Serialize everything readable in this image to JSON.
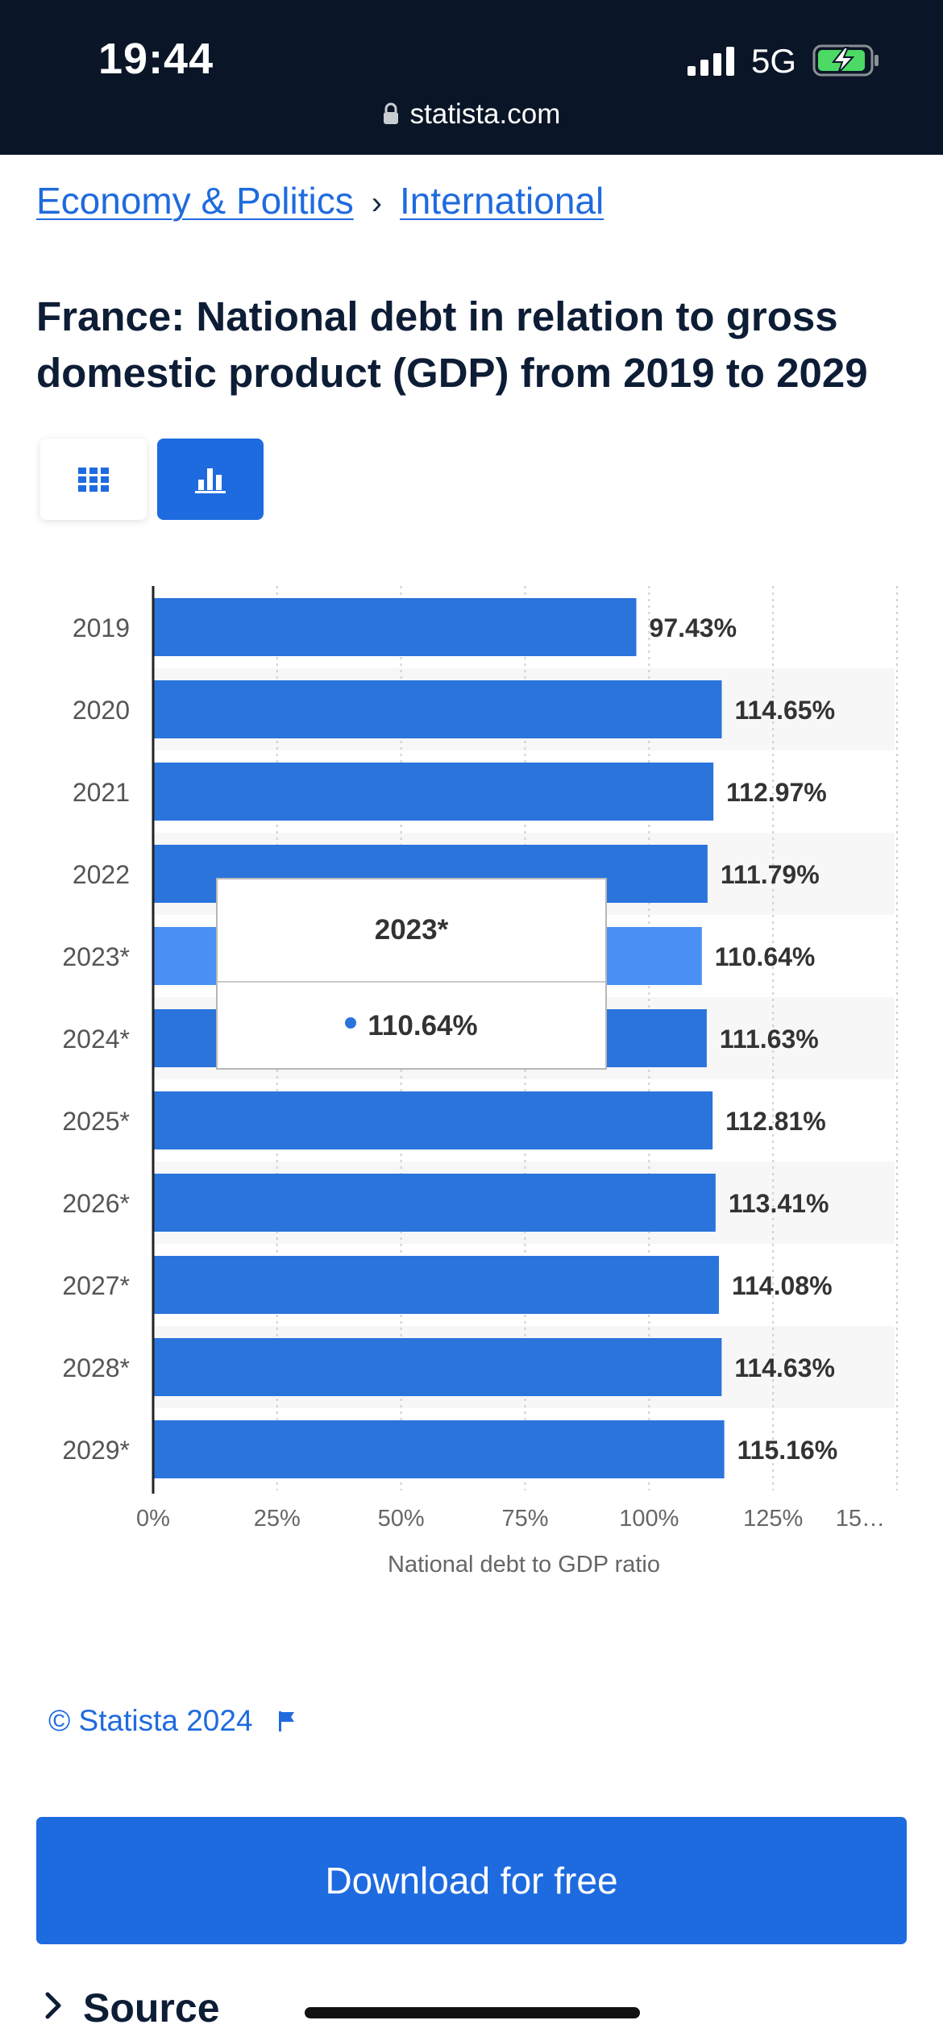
{
  "status_bar": {
    "time": "19:44",
    "network": "5G",
    "url": "statista.com"
  },
  "breadcrumb": {
    "items": [
      "Economy & Politics",
      "International"
    ],
    "separator": "›"
  },
  "title": "France: National debt in relation to gross domestic product (GDP) from 2019 to 2029",
  "view_toggle": {
    "table_icon": "grid-icon",
    "chart_icon": "bar-chart-icon",
    "active": "chart"
  },
  "chart_data": {
    "type": "bar",
    "orientation": "horizontal",
    "categories": [
      "2019",
      "2020",
      "2021",
      "2022",
      "2023*",
      "2024*",
      "2025*",
      "2026*",
      "2027*",
      "2028*",
      "2029*"
    ],
    "values": [
      97.43,
      114.65,
      112.97,
      111.79,
      110.64,
      111.63,
      112.81,
      113.41,
      114.08,
      114.63,
      115.16
    ],
    "value_labels": [
      "97.43%",
      "114.65%",
      "112.97%",
      "111.79%",
      "110.64%",
      "111.63%",
      "112.81%",
      "113.41%",
      "114.08%",
      "114.63%",
      "115.16%"
    ],
    "xlabel": "National debt to GDP ratio",
    "xlim": [
      0,
      150
    ],
    "x_ticks": [
      "0%",
      "25%",
      "50%",
      "75%",
      "100%",
      "125%",
      "15…"
    ],
    "highlighted_category": "2023*",
    "bar_color": "#2a74dc",
    "highlight_color": "#4a90f4",
    "grid": true
  },
  "tooltip": {
    "title": "2023*",
    "value": "110.64%"
  },
  "copyright": "© Statista 2024",
  "download_label": "Download for free",
  "source_label": "Source",
  "colors": {
    "accent": "#1e6be0",
    "link": "#1f6bde",
    "status_bar": "#0a1627",
    "battery": "#4cd964"
  }
}
